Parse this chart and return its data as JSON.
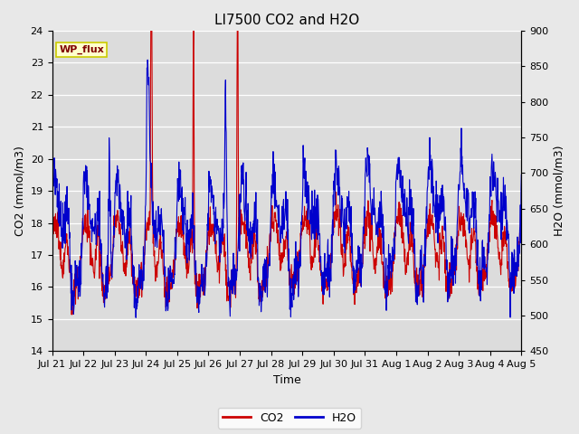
{
  "title": "LI7500 CO2 and H2O",
  "xlabel": "Time",
  "ylabel_left": "CO2 (mmol/m3)",
  "ylabel_right": "H2O (mmol/m3)",
  "co2_ylim": [
    14.0,
    24.0
  ],
  "h2o_ylim": [
    450,
    900
  ],
  "co2_yticks": [
    14.0,
    15.0,
    16.0,
    17.0,
    18.0,
    19.0,
    20.0,
    21.0,
    22.0,
    23.0,
    24.0
  ],
  "h2o_yticks": [
    450,
    500,
    550,
    600,
    650,
    700,
    750,
    800,
    850,
    900
  ],
  "xtick_labels": [
    "Jul 21",
    "Jul 22",
    "Jul 23",
    "Jul 24",
    "Jul 25",
    "Jul 26",
    "Jul 27",
    "Jul 28",
    "Jul 29",
    "Jul 30",
    "Jul 31",
    "Aug 1",
    "Aug 2",
    "Aug 3",
    "Aug 4",
    "Aug 5"
  ],
  "co2_color": "#cc0000",
  "h2o_color": "#0000cc",
  "fig_bg_color": "#e8e8e8",
  "plot_bg_color": "#dcdcdc",
  "grid_color": "#ffffff",
  "legend_box_facecolor": "#ffffcc",
  "legend_box_edgecolor": "#cccc00",
  "legend_text": "WP_flux",
  "legend_text_color": "#800000",
  "title_fontsize": 11,
  "label_fontsize": 9,
  "tick_fontsize": 8,
  "legend_fontsize": 9
}
